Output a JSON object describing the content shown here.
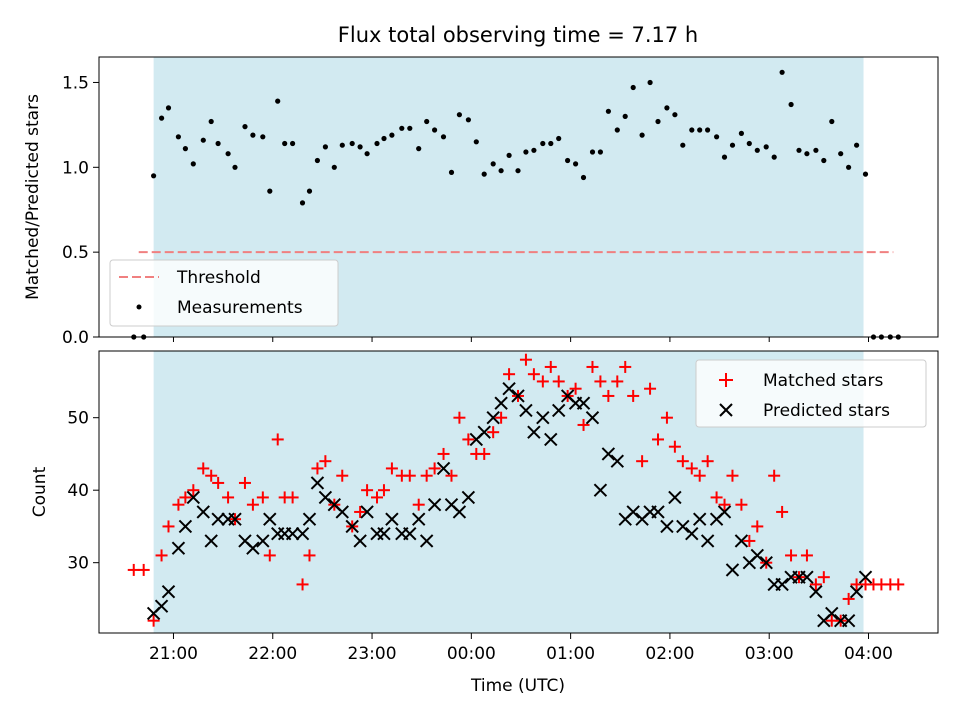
{
  "chart_data": [
    {
      "type": "scatter",
      "title": "Flux total observing time = 7.17 h",
      "xlabel": "",
      "ylabel": "Matched/Predicted stars",
      "ylim": [
        0,
        1.65
      ],
      "yticks": [
        0.0,
        0.5,
        1.0,
        1.5
      ],
      "ytick_labels": [
        "0.0",
        "0.5",
        "1.0",
        "1.5"
      ],
      "xlim_hours": [
        20.25,
        28.7
      ],
      "observing_window_hours": [
        20.8,
        27.95
      ],
      "observing_window_color": "#add8e6",
      "grid": false,
      "legend_position": "lower-left",
      "threshold": {
        "name": "Threshold",
        "value": 0.5,
        "x_range_hours": [
          20.65,
          28.25
        ],
        "color": "#f08080",
        "style": "dashed"
      },
      "series": [
        {
          "name": "Measurements",
          "color": "#000000",
          "marker": "dot",
          "x_hours": [
            20.6,
            20.7,
            20.8,
            20.88,
            20.95,
            21.05,
            21.12,
            21.2,
            21.3,
            21.38,
            21.45,
            21.55,
            21.62,
            21.72,
            21.8,
            21.9,
            21.97,
            22.05,
            22.12,
            22.2,
            22.3,
            22.37,
            22.45,
            22.53,
            22.62,
            22.7,
            22.8,
            22.88,
            22.95,
            23.05,
            23.12,
            23.2,
            23.3,
            23.38,
            23.47,
            23.55,
            23.63,
            23.72,
            23.8,
            23.88,
            23.97,
            24.05,
            24.13,
            24.22,
            24.3,
            24.38,
            24.47,
            24.55,
            24.63,
            24.72,
            24.8,
            24.88,
            24.97,
            25.05,
            25.13,
            25.22,
            25.3,
            25.38,
            25.47,
            25.55,
            25.63,
            25.72,
            25.8,
            25.88,
            25.97,
            26.05,
            26.13,
            26.22,
            26.3,
            26.38,
            26.47,
            26.55,
            26.63,
            26.72,
            26.8,
            26.88,
            26.97,
            27.05,
            27.13,
            27.22,
            27.3,
            27.38,
            27.47,
            27.55,
            27.63,
            27.72,
            27.8,
            27.88,
            27.97,
            28.05,
            28.13,
            28.22,
            28.3
          ],
          "y": [
            0.0,
            0.0,
            0.95,
            1.29,
            1.35,
            1.18,
            1.11,
            1.02,
            1.16,
            1.27,
            1.14,
            1.08,
            1.0,
            1.24,
            1.19,
            1.18,
            0.86,
            1.39,
            1.14,
            1.14,
            0.79,
            0.86,
            1.04,
            1.12,
            1.0,
            1.13,
            1.14,
            1.12,
            1.08,
            1.14,
            1.17,
            1.19,
            1.23,
            1.23,
            1.11,
            1.27,
            1.22,
            1.18,
            0.97,
            1.31,
            1.28,
            1.15,
            0.96,
            1.02,
            0.98,
            1.07,
            0.98,
            1.09,
            1.1,
            1.14,
            1.14,
            1.17,
            1.04,
            1.02,
            0.94,
            1.09,
            1.09,
            1.33,
            1.22,
            1.3,
            1.47,
            1.19,
            1.5,
            1.27,
            1.35,
            1.31,
            1.13,
            1.22,
            1.22,
            1.22,
            1.18,
            1.06,
            1.13,
            1.2,
            1.14,
            1.1,
            1.12,
            1.06,
            1.56,
            1.37,
            1.1,
            1.08,
            1.1,
            1.04,
            1.27,
            1.08,
            1.0,
            1.13,
            0.96,
            0.0,
            0.0,
            0.0,
            0.0
          ]
        }
      ]
    },
    {
      "type": "scatter",
      "title": "",
      "xlabel": "Time (UTC)",
      "ylabel": "Count",
      "ylim": [
        20.3,
        59.2
      ],
      "yticks": [
        30,
        40,
        50
      ],
      "ytick_labels": [
        "30",
        "40",
        "50"
      ],
      "xlim_hours": [
        20.25,
        28.7
      ],
      "xticks_hours": [
        21,
        22,
        23,
        24,
        25,
        26,
        27,
        28
      ],
      "xtick_labels": [
        "21:00",
        "22:00",
        "23:00",
        "00:00",
        "01:00",
        "02:00",
        "03:00",
        "04:00"
      ],
      "observing_window_hours": [
        20.8,
        27.95
      ],
      "observing_window_color": "#add8e6",
      "grid": false,
      "legend_position": "top-right",
      "series": [
        {
          "name": "Matched stars",
          "color": "#ff0000",
          "marker": "plus",
          "x_hours": [
            20.6,
            20.7,
            20.8,
            20.88,
            20.95,
            21.05,
            21.12,
            21.2,
            21.3,
            21.38,
            21.45,
            21.55,
            21.62,
            21.72,
            21.8,
            21.9,
            21.97,
            22.05,
            22.12,
            22.2,
            22.3,
            22.37,
            22.45,
            22.53,
            22.62,
            22.7,
            22.8,
            22.88,
            22.95,
            23.05,
            23.12,
            23.2,
            23.3,
            23.38,
            23.47,
            23.55,
            23.63,
            23.72,
            23.8,
            23.88,
            23.97,
            24.05,
            24.13,
            24.22,
            24.3,
            24.38,
            24.47,
            24.55,
            24.63,
            24.72,
            24.8,
            24.88,
            24.97,
            25.05,
            25.13,
            25.22,
            25.3,
            25.38,
            25.47,
            25.55,
            25.63,
            25.72,
            25.8,
            25.88,
            25.97,
            26.05,
            26.13,
            26.22,
            26.3,
            26.38,
            26.47,
            26.55,
            26.63,
            26.72,
            26.8,
            26.88,
            26.97,
            27.05,
            27.13,
            27.22,
            27.3,
            27.38,
            27.47,
            27.55,
            27.63,
            27.72,
            27.8,
            27.88,
            27.97,
            28.05,
            28.13,
            28.22,
            28.3
          ],
          "y": [
            29,
            29,
            22,
            31,
            35,
            38,
            39,
            40,
            43,
            42,
            41,
            39,
            36,
            41,
            38,
            39,
            31,
            47,
            39,
            39,
            27,
            31,
            43,
            44,
            38,
            42,
            35,
            37,
            40,
            39,
            40,
            43,
            42,
            42,
            38,
            42,
            43,
            45,
            42,
            50,
            47,
            45,
            45,
            48,
            50,
            56,
            53,
            58,
            56,
            55,
            57,
            55,
            53,
            54,
            49,
            57,
            55,
            53,
            55,
            57,
            53,
            44,
            54,
            47,
            50,
            46,
            44,
            43,
            42,
            44,
            39,
            38,
            42,
            38,
            33,
            35,
            30,
            42,
            37,
            31,
            28,
            31,
            27,
            28,
            22,
            22,
            25,
            27,
            27,
            27,
            27,
            27,
            27
          ]
        },
        {
          "name": "Predicted stars",
          "color": "#000000",
          "marker": "x",
          "x_hours": [
            20.8,
            20.88,
            20.95,
            21.05,
            21.12,
            21.2,
            21.3,
            21.38,
            21.45,
            21.55,
            21.62,
            21.72,
            21.8,
            21.9,
            21.97,
            22.05,
            22.12,
            22.2,
            22.3,
            22.37,
            22.45,
            22.53,
            22.62,
            22.7,
            22.8,
            22.88,
            22.95,
            23.05,
            23.12,
            23.2,
            23.3,
            23.38,
            23.47,
            23.55,
            23.63,
            23.72,
            23.8,
            23.88,
            23.97,
            24.05,
            24.13,
            24.22,
            24.3,
            24.38,
            24.47,
            24.55,
            24.63,
            24.72,
            24.8,
            24.88,
            24.97,
            25.05,
            25.13,
            25.22,
            25.3,
            25.38,
            25.47,
            25.55,
            25.63,
            25.72,
            25.8,
            25.88,
            25.97,
            26.05,
            26.13,
            26.22,
            26.3,
            26.38,
            26.47,
            26.55,
            26.63,
            26.72,
            26.8,
            26.88,
            26.97,
            27.05,
            27.13,
            27.22,
            27.3,
            27.38,
            27.47,
            27.55,
            27.63,
            27.72,
            27.8,
            27.88,
            27.97
          ],
          "y": [
            23,
            24,
            26,
            32,
            35,
            39,
            37,
            33,
            36,
            36,
            36,
            33,
            32,
            33,
            36,
            34,
            34,
            34,
            34,
            36,
            41,
            39,
            38,
            37,
            35,
            33,
            37,
            34,
            34,
            36,
            34,
            34,
            36,
            33,
            38,
            43,
            38,
            37,
            39,
            47,
            48,
            50,
            52,
            54,
            53,
            51,
            48,
            50,
            47,
            51,
            53,
            52,
            52,
            50,
            40,
            45,
            44,
            36,
            37,
            36,
            37,
            37,
            35,
            39,
            35,
            34,
            36,
            33,
            36,
            37,
            29,
            33,
            30,
            31,
            30,
            27,
            27,
            28,
            28,
            28,
            26,
            22,
            23,
            22,
            22,
            26,
            28
          ]
        }
      ]
    }
  ]
}
